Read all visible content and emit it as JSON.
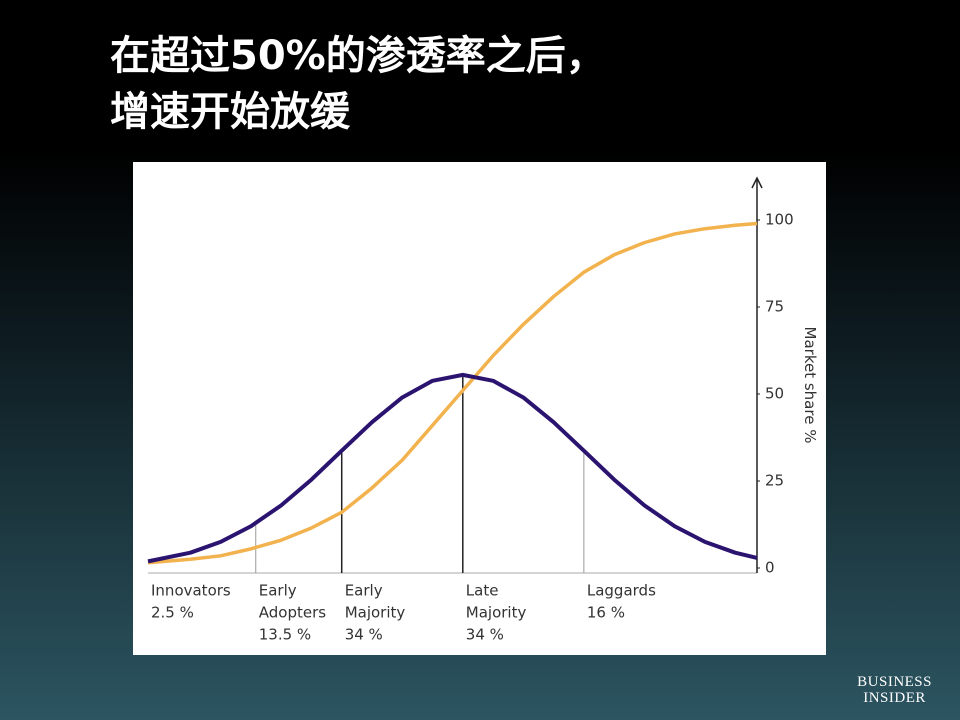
{
  "chart_data": {
    "type": "line",
    "title": [
      "在超过50%的渗透率之后，",
      "增速开始放缓"
    ],
    "y_label": "Market share %",
    "x": [
      -2.6,
      -2.25,
      -2,
      -1.75,
      -1.5,
      -1.25,
      -1,
      -0.75,
      -0.5,
      -0.25,
      0,
      0.25,
      0.5,
      0.75,
      1,
      1.25,
      1.5,
      1.75,
      2,
      2.25,
      2.43
    ],
    "series": [
      {
        "color": "#f2b24e",
        "values": [
          1.5,
          2.5,
          3.5,
          5.5,
          8,
          11.5,
          16,
          23,
          31,
          41,
          51,
          61,
          70,
          78,
          85,
          90,
          93.5,
          96,
          97.5,
          98.5,
          99
        ]
      },
      {
        "color": "#2b1470",
        "values": [
          1.9,
          4.4,
          7.5,
          12.0,
          18.0,
          25.4,
          33.7,
          41.9,
          49.0,
          53.8,
          55.5,
          53.8,
          49.0,
          41.9,
          33.7,
          25.4,
          18.0,
          12.0,
          7.5,
          4.4,
          2.9
        ]
      }
    ],
    "dividers_x": [
      -1.71,
      -1,
      0,
      1
    ],
    "segments": [
      {
        "name": [
          "Innovators"
        ],
        "share": 2.5,
        "share_label": "2.5 %"
      },
      {
        "name": [
          "Early",
          "Adopters"
        ],
        "share": 13.5,
        "share_label": "13.5 %"
      },
      {
        "name": [
          "Early",
          "Majority"
        ],
        "share": 34,
        "share_label": "34 %"
      },
      {
        "name": [
          "Late",
          "Majority"
        ],
        "share": 34,
        "share_label": "34 %"
      },
      {
        "name": [
          "Laggards"
        ],
        "share": 16,
        "share_label": "16 %"
      }
    ],
    "xlim": [
      -2.6,
      2.43
    ],
    "ylim": [
      0,
      100
    ],
    "yticks": [
      0,
      25,
      50,
      75,
      100
    ],
    "y_axis_side": "right"
  },
  "brand": [
    "BUSINESS",
    "INSIDER"
  ]
}
